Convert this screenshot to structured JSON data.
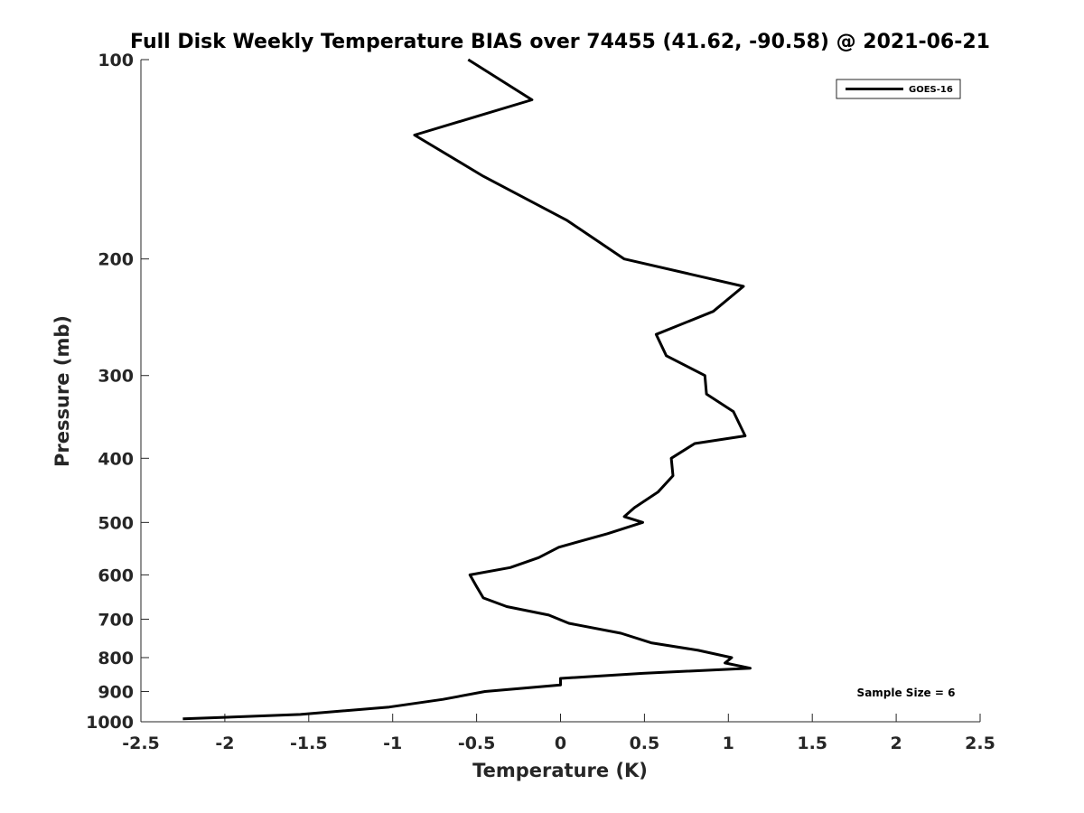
{
  "chart_data": {
    "type": "line",
    "title": "Full Disk Weekly Temperature BIAS over 74455 (41.62, -90.58) @ 2021-06-21",
    "xlabel": "Temperature (K)",
    "ylabel": "Pressure (mb)",
    "xlim": [
      -2.5,
      2.5
    ],
    "ylim": [
      1000,
      100
    ],
    "yscale": "log",
    "y_reversed": true,
    "grid": false,
    "legend_position": "top-right",
    "x_ticks": [
      "-2.5",
      "-2",
      "-1.5",
      "-1",
      "-0.5",
      "0",
      "0.5",
      "1",
      "1.5",
      "2",
      "2.5"
    ],
    "y_ticks": [
      "100",
      "200",
      "300",
      "400",
      "500",
      "600",
      "700",
      "800",
      "900",
      "1000"
    ],
    "annotation": "Sample Size = 6",
    "series": [
      {
        "name": "GOES-16",
        "color": "#000000",
        "points": [
          [
            -0.55,
            100
          ],
          [
            -0.17,
            115
          ],
          [
            -0.87,
            130
          ],
          [
            -0.46,
            150
          ],
          [
            0.04,
            175
          ],
          [
            0.38,
            200
          ],
          [
            1.09,
            220
          ],
          [
            0.91,
            240
          ],
          [
            0.57,
            260
          ],
          [
            0.63,
            280
          ],
          [
            0.86,
            300
          ],
          [
            0.87,
            320
          ],
          [
            1.03,
            340
          ],
          [
            1.1,
            370
          ],
          [
            0.8,
            380
          ],
          [
            0.66,
            400
          ],
          [
            0.67,
            425
          ],
          [
            0.58,
            450
          ],
          [
            0.44,
            475
          ],
          [
            0.38,
            490
          ],
          [
            0.49,
            500
          ],
          [
            0.28,
            520
          ],
          [
            -0.01,
            545
          ],
          [
            -0.13,
            565
          ],
          [
            -0.3,
            585
          ],
          [
            -0.54,
            600
          ],
          [
            -0.5,
            625
          ],
          [
            -0.46,
            650
          ],
          [
            -0.32,
            670
          ],
          [
            -0.07,
            690
          ],
          [
            0.05,
            710
          ],
          [
            0.36,
            735
          ],
          [
            0.54,
            760
          ],
          [
            0.82,
            780
          ],
          [
            1.02,
            800
          ],
          [
            0.98,
            815
          ],
          [
            1.13,
            830
          ],
          [
            0.49,
            845
          ],
          [
            0.0,
            860
          ],
          [
            0.0,
            880
          ],
          [
            -0.45,
            900
          ],
          [
            -0.7,
            925
          ],
          [
            -1.02,
            950
          ],
          [
            -1.55,
            975
          ],
          [
            -2.25,
            990
          ]
        ]
      }
    ]
  }
}
